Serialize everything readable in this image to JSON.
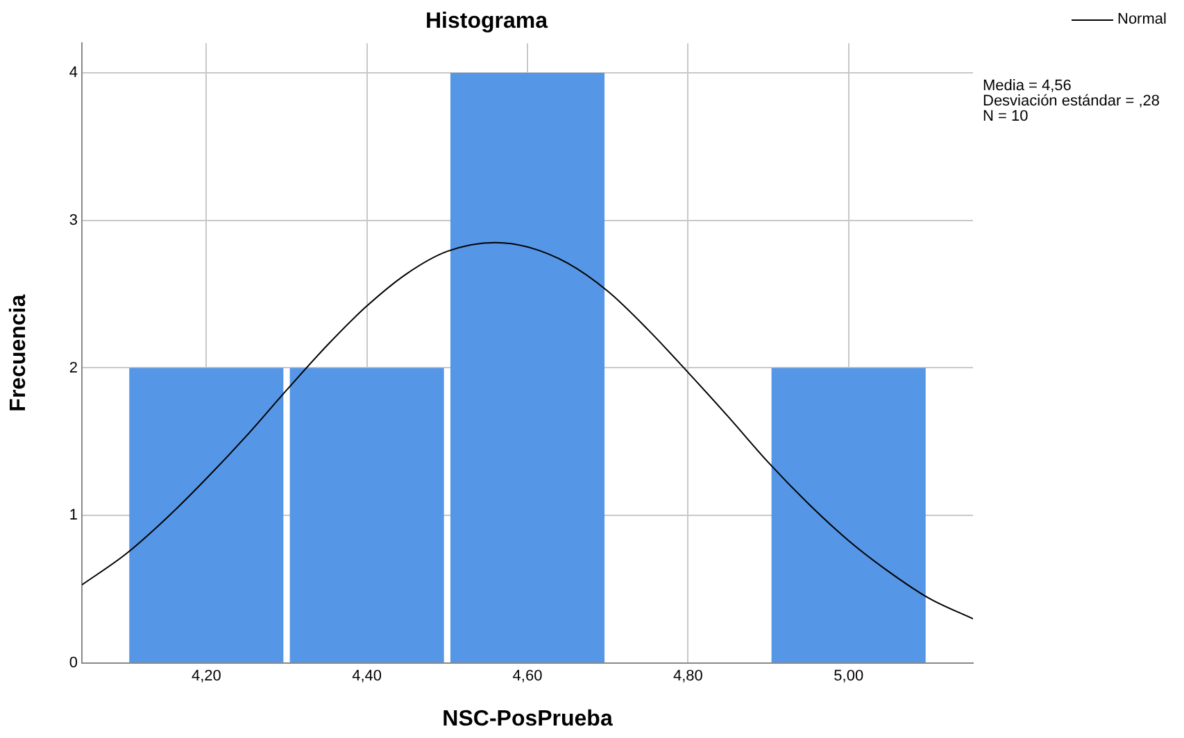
{
  "chart_data": {
    "type": "histogram",
    "title": "Histograma",
    "xlabel": "NSC-PosPrueba",
    "ylabel": "Frecuencia",
    "bins": [
      4.1,
      4.3,
      4.5,
      4.7,
      4.9,
      5.1
    ],
    "values": [
      2,
      2,
      4,
      0,
      2
    ],
    "color": "#5596e6",
    "series": [
      {
        "name": "Normal",
        "type": "line",
        "color": "#000000",
        "x": [
          4.045,
          4.1,
          4.15,
          4.2,
          4.25,
          4.3,
          4.35,
          4.4,
          4.45,
          4.5,
          4.56,
          4.6,
          4.65,
          4.7,
          4.75,
          4.8,
          4.85,
          4.9,
          4.95,
          5.0,
          5.05,
          5.1,
          5.155
        ],
        "values": [
          0.53,
          0.74,
          0.98,
          1.25,
          1.54,
          1.85,
          2.15,
          2.42,
          2.64,
          2.79,
          2.85,
          2.82,
          2.71,
          2.52,
          2.26,
          1.97,
          1.67,
          1.36,
          1.08,
          0.83,
          0.62,
          0.44,
          0.3
        ]
      }
    ],
    "xlim": [
      4.045,
      5.155
    ],
    "xticks": [
      {
        "value": 4.2,
        "label": "4,20"
      },
      {
        "value": 4.4,
        "label": "4,40"
      },
      {
        "value": 4.6,
        "label": "4,60"
      },
      {
        "value": 4.8,
        "label": "4,80"
      },
      {
        "value": 5.0,
        "label": "5,00"
      }
    ],
    "ylim": [
      0,
      4.2
    ],
    "yticks": [
      0,
      1,
      2,
      3,
      4
    ],
    "grid": true,
    "legend": "top right",
    "marker": "none",
    "line_style": "solid",
    "annotations": [
      "Media = 4,56",
      "Desviación estándar = ,28",
      "N = 10"
    ]
  }
}
